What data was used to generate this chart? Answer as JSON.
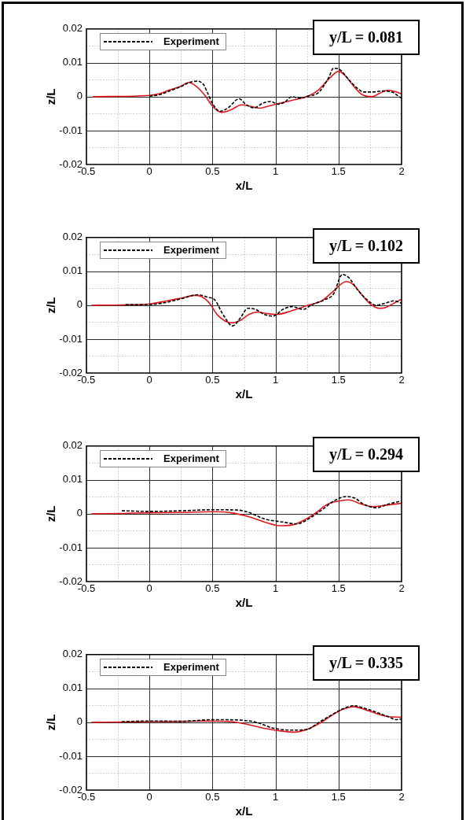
{
  "chart_data": [
    {
      "type": "line",
      "xlabel": "x/L",
      "ylabel": "z/L",
      "annotations": [
        "y/L = 0.081"
      ],
      "grid": true,
      "legend": "top left",
      "marker": "none",
      "xlim": [
        -0.5,
        2
      ],
      "xticks": [
        -0.5,
        {
          "value": -0.25,
          "label": null
        },
        0,
        {
          "value": 0.25,
          "label": null
        },
        0.5,
        {
          "value": 0.75,
          "label": null
        },
        1,
        {
          "value": 1.25,
          "label": null
        },
        1.5,
        {
          "value": 1.75,
          "label": null
        },
        2
      ],
      "ylim": [
        -0.02,
        0.02
      ],
      "yticks": [
        -0.02,
        {
          "value": -0.015,
          "label": null
        },
        -0.01,
        {
          "value": -0.005,
          "label": null
        },
        0,
        {
          "value": 0.005,
          "label": null
        },
        0.01,
        {
          "value": 0.015,
          "label": null
        },
        0.02
      ],
      "series": [
        {
          "color": "#e0191f",
          "line_style": "solid",
          "x": [
            -0.45,
            0,
            0.08,
            0.16,
            0.25,
            0.31,
            0.37,
            0.44,
            0.5,
            0.57,
            0.65,
            0.73,
            0.8,
            0.87,
            0.94,
            1.05,
            1.15,
            1.26,
            1.34,
            1.43,
            1.5,
            1.55,
            1.62,
            1.68,
            1.76,
            1.83,
            1.89,
            1.96,
            2
          ],
          "values": [
            0,
            0.0004,
            0.0009,
            0.002,
            0.0031,
            0.0042,
            0.0031,
            0.0004,
            -0.0028,
            -0.0046,
            -0.0038,
            -0.0024,
            -0.0028,
            -0.0034,
            -0.0028,
            -0.0018,
            -0.0009,
            0.0002,
            0.002,
            0.0055,
            0.0075,
            0.0063,
            0.0031,
            0.0008,
            0,
            0.0011,
            0.0019,
            0.0014,
            0.0008
          ]
        },
        {
          "name": "Experiment",
          "color": "#000000",
          "line_style": "dashed",
          "x": [
            0,
            0.08,
            0.16,
            0.25,
            0.31,
            0.38,
            0.43,
            0.46,
            0.5,
            0.56,
            0.63,
            0.71,
            0.77,
            0.83,
            0.9,
            0.96,
            1.02,
            1.07,
            1.13,
            1.19,
            1.26,
            1.34,
            1.42,
            1.46,
            1.51,
            1.58,
            1.64,
            1.7,
            1.77,
            1.85,
            1.93,
            1.98,
            2
          ],
          "values": [
            0.0002,
            0.0006,
            0.0017,
            0.003,
            0.0041,
            0.0046,
            0.0035,
            0.0012,
            -0.002,
            -0.0043,
            -0.0031,
            -0.0006,
            -0.0024,
            -0.0033,
            -0.0019,
            -0.0014,
            -0.0022,
            -0.0017,
            0,
            -0.0004,
            0.0002,
            0.0012,
            0.0055,
            0.0084,
            0.008,
            0.0051,
            0.0028,
            0.0014,
            0.0014,
            0.0017,
            0.0013,
            0,
            -0.0004
          ]
        }
      ]
    },
    {
      "type": "line",
      "xlabel": "x/L",
      "ylabel": "z/L",
      "annotations": [
        "y/L = 0.102"
      ],
      "grid": true,
      "legend": "top left",
      "marker": "none",
      "xlim": [
        -0.5,
        2
      ],
      "xticks": [
        -0.5,
        {
          "value": -0.25,
          "label": null
        },
        0,
        {
          "value": 0.25,
          "label": null
        },
        0.5,
        {
          "value": 0.75,
          "label": null
        },
        1,
        {
          "value": 1.25,
          "label": null
        },
        1.5,
        {
          "value": 1.75,
          "label": null
        },
        2
      ],
      "ylim": [
        -0.02,
        0.02
      ],
      "yticks": [
        -0.02,
        {
          "value": -0.015,
          "label": null
        },
        -0.01,
        {
          "value": -0.005,
          "label": null
        },
        0,
        {
          "value": 0.005,
          "label": null
        },
        0.01,
        {
          "value": 0.015,
          "label": null
        },
        0.02
      ],
      "series": [
        {
          "color": "#e0191f",
          "line_style": "solid",
          "x": [
            -0.46,
            -0.22,
            0,
            0.14,
            0.26,
            0.36,
            0.42,
            0.48,
            0.54,
            0.65,
            0.72,
            0.79,
            0.86,
            0.94,
            1.01,
            1.13,
            1.25,
            1.37,
            1.46,
            1.56,
            1.62,
            1.68,
            1.75,
            1.82,
            1.87,
            1.94,
            2
          ],
          "values": [
            0,
            0.0001,
            0.0004,
            0.0013,
            0.0022,
            0.0029,
            0.0024,
            0.0004,
            -0.0029,
            -0.0052,
            -0.0045,
            -0.0027,
            -0.002,
            -0.0025,
            -0.0027,
            -0.0016,
            -0.0001,
            0.0014,
            0.0042,
            0.007,
            0.006,
            0.0033,
            0.0004,
            -0.0009,
            -0.0007,
            0.0006,
            0.0018
          ]
        },
        {
          "name": "Experiment",
          "color": "#000000",
          "line_style": "dashed",
          "x": [
            -0.19,
            0,
            0.14,
            0.26,
            0.38,
            0.46,
            0.52,
            0.58,
            0.66,
            0.72,
            0.78,
            0.84,
            0.91,
            0.98,
            1.06,
            1.13,
            1.22,
            1.29,
            1.39,
            1.46,
            1.53,
            1.58,
            1.65,
            1.73,
            1.8,
            1.87,
            1.94,
            2
          ],
          "values": [
            0.0002,
            0.0002,
            0.0009,
            0.002,
            0.0031,
            0.0024,
            0.0015,
            -0.0025,
            -0.0061,
            -0.0038,
            -0.0009,
            -0.0012,
            -0.0027,
            -0.0032,
            -0.0012,
            -0.0004,
            -0.0012,
            0.0002,
            0.0016,
            0.0033,
            0.0091,
            0.0082,
            0.0046,
            0.0015,
            0,
            0.0006,
            0.0013,
            0.0006
          ]
        }
      ]
    },
    {
      "type": "line",
      "xlabel": "x/L",
      "ylabel": "z/L",
      "annotations": [
        "y/L = 0.294"
      ],
      "grid": true,
      "legend": "top left",
      "marker": "none",
      "xlim": [
        -0.5,
        2
      ],
      "xticks": [
        -0.5,
        {
          "value": -0.25,
          "label": null
        },
        0,
        {
          "value": 0.25,
          "label": null
        },
        0.5,
        {
          "value": 0.75,
          "label": null
        },
        1,
        {
          "value": 1.25,
          "label": null
        },
        1.5,
        {
          "value": 1.75,
          "label": null
        },
        2
      ],
      "ylim": [
        -0.02,
        0.02
      ],
      "yticks": [
        -0.02,
        {
          "value": -0.015,
          "label": null
        },
        -0.01,
        {
          "value": -0.005,
          "label": null
        },
        0,
        {
          "value": 0.005,
          "label": null
        },
        0.01,
        {
          "value": 0.015,
          "label": null
        },
        0.02
      ],
      "series": [
        {
          "color": "#e0191f",
          "line_style": "solid",
          "x": [
            -0.46,
            -0.22,
            0,
            0.26,
            0.5,
            0.65,
            0.79,
            0.91,
            1.03,
            1.13,
            1.22,
            1.32,
            1.41,
            1.51,
            1.58,
            1.68,
            1.77,
            1.87,
            2
          ],
          "values": [
            0,
            0.0001,
            0.0003,
            0.0004,
            0.0006,
            0.0003,
            -0.0009,
            -0.0024,
            -0.0035,
            -0.0033,
            -0.002,
            0.0003,
            0.0028,
            0.0038,
            0.0041,
            0.0029,
            0.0021,
            0.0025,
            0.0031
          ]
        },
        {
          "name": "Experiment",
          "color": "#000000",
          "line_style": "dashed",
          "x": [
            -0.22,
            0,
            0.26,
            0.5,
            0.7,
            0.79,
            0.91,
            1.05,
            1.17,
            1.27,
            1.37,
            1.46,
            1.56,
            1.63,
            1.7,
            1.8,
            1.89,
            2
          ],
          "values": [
            0.0009,
            0.0007,
            0.0009,
            0.0012,
            0.0011,
            0.0004,
            -0.0015,
            -0.0024,
            -0.003,
            -0.0013,
            0.0012,
            0.0037,
            0.0051,
            0.0046,
            0.0028,
            0.0018,
            0.0028,
            0.0038
          ]
        }
      ]
    },
    {
      "type": "line",
      "xlabel": "x/L",
      "ylabel": "z/L",
      "annotations": [
        "y/L = 0.335"
      ],
      "grid": true,
      "legend": "top left",
      "marker": "none",
      "xlim": [
        -0.5,
        2
      ],
      "xticks": [
        -0.5,
        {
          "value": -0.25,
          "label": null
        },
        0,
        {
          "value": 0.25,
          "label": null
        },
        0.5,
        {
          "value": 0.75,
          "label": null
        },
        1,
        {
          "value": 1.25,
          "label": null
        },
        1.5,
        {
          "value": 1.75,
          "label": null
        },
        2
      ],
      "ylim": [
        -0.02,
        0.02
      ],
      "yticks": [
        -0.02,
        {
          "value": -0.015,
          "label": null
        },
        -0.01,
        {
          "value": -0.005,
          "label": null
        },
        0,
        {
          "value": 0.005,
          "label": null
        },
        0.01,
        {
          "value": 0.015,
          "label": null
        },
        0.02
      ],
      "series": [
        {
          "color": "#e0191f",
          "line_style": "solid",
          "x": [
            -0.46,
            -0.22,
            0,
            0.26,
            0.5,
            0.65,
            0.79,
            0.93,
            1.05,
            1.15,
            1.24,
            1.34,
            1.44,
            1.53,
            1.62,
            1.7,
            1.8,
            1.89,
            2
          ],
          "values": [
            0,
            0.0001,
            0.0002,
            0.0003,
            0.0004,
            0.0002,
            -0.0007,
            -0.0019,
            -0.0026,
            -0.0029,
            -0.0022,
            -0.0005,
            0.0019,
            0.0038,
            0.0046,
            0.0039,
            0.0026,
            0.0017,
            0.0015
          ]
        },
        {
          "name": "Experiment",
          "color": "#000000",
          "line_style": "dashed",
          "x": [
            -0.22,
            0,
            0.26,
            0.36,
            0.5,
            0.69,
            0.84,
            0.98,
            1.13,
            1.25,
            1.34,
            1.44,
            1.53,
            1.62,
            1.7,
            1.8,
            1.89,
            1.96,
            2
          ],
          "values": [
            0.0002,
            0.0004,
            0.0003,
            0.0005,
            0.0008,
            0.0007,
            0.0001,
            -0.0017,
            -0.0023,
            -0.0021,
            -0.0001,
            0.0021,
            0.0039,
            0.0049,
            0.0042,
            0.003,
            0.0017,
            0.0008,
            0.001
          ]
        }
      ]
    }
  ]
}
